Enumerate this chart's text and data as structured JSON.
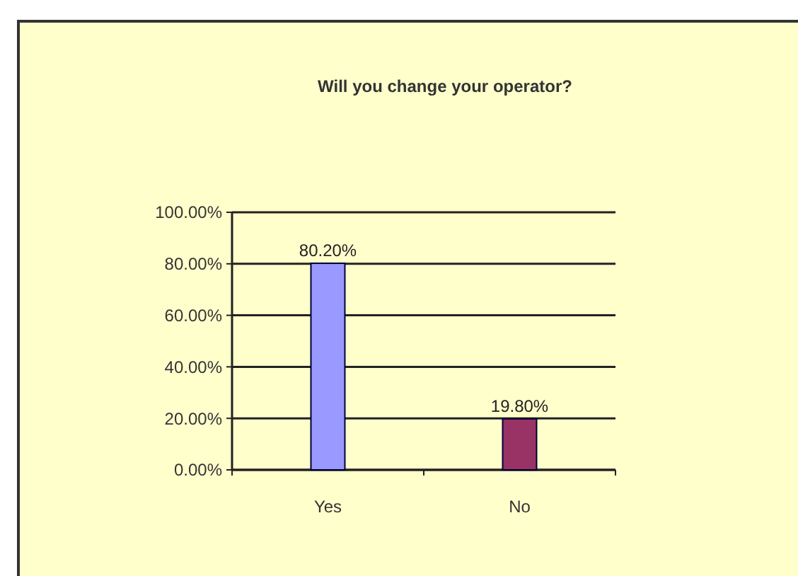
{
  "chart_data": {
    "type": "bar",
    "title": "Will you change your operator?",
    "categories": [
      "Yes",
      "No"
    ],
    "values": [
      80.2,
      19.8
    ],
    "colors": [
      "#9999ff",
      "#993366"
    ],
    "value_labels": [
      "80.20%",
      "19.80%"
    ],
    "ylim": [
      0,
      100
    ],
    "yticks": [
      {
        "value": 0,
        "label": "0.00%"
      },
      {
        "value": 20,
        "label": "20.00%"
      },
      {
        "value": 40,
        "label": "40.00%"
      },
      {
        "value": 60,
        "label": "60.00%"
      },
      {
        "value": 80,
        "label": "80.00%"
      },
      {
        "value": 100,
        "label": "100.00%"
      }
    ],
    "grid": "y",
    "legend": false
  }
}
